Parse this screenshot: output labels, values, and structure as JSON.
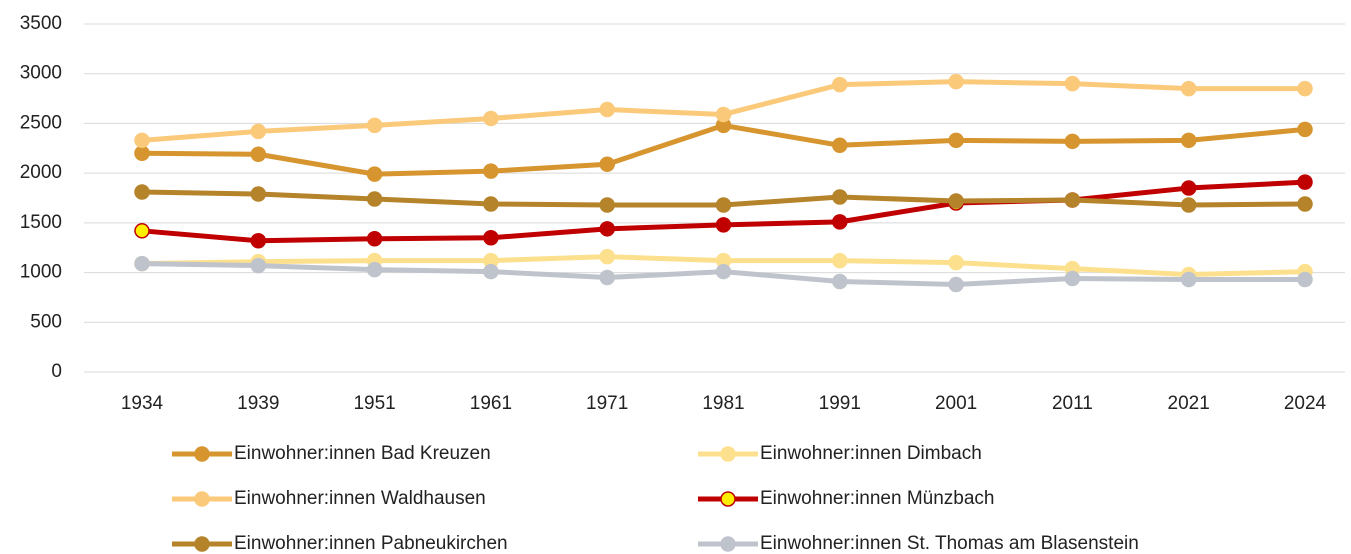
{
  "chart_data": {
    "type": "line",
    "categories": [
      "1934",
      "1939",
      "1951",
      "1961",
      "1971",
      "1981",
      "1991",
      "2001",
      "2011",
      "2021",
      "2024"
    ],
    "ylim": [
      0,
      3500
    ],
    "yticks": [
      0,
      500,
      1000,
      1500,
      2000,
      2500,
      3000,
      3500
    ],
    "grid": true,
    "legend": "bottom",
    "series": [
      {
        "name": "Einwohner:innen Bad Kreuzen",
        "color": "#d6952e",
        "values": [
          2200,
          2190,
          1990,
          2020,
          2090,
          2480,
          2280,
          2330,
          2320,
          2330,
          2440
        ]
      },
      {
        "name": "Einwohner:innen Dimbach",
        "color": "#fde08e",
        "values": [
          1090,
          1110,
          1120,
          1120,
          1160,
          1120,
          1120,
          1100,
          1040,
          980,
          1010
        ]
      },
      {
        "name": "Einwohner:innen Waldhausen",
        "color": "#fbc97a",
        "values": [
          2330,
          2420,
          2480,
          2550,
          2640,
          2590,
          2890,
          2920,
          2900,
          2850,
          2850
        ]
      },
      {
        "name": "Einwohner:innen Münzbach",
        "color": "#c00000",
        "marker_color": "#ffee00",
        "marker_colors": [
          "#ffee00",
          "#c00000",
          "#c00000",
          "#c00000",
          "#c00000",
          "#c00000",
          "#c00000",
          "#ffee00",
          "#c00000",
          "#c00000",
          "#c00000"
        ],
        "values": [
          1420,
          1320,
          1340,
          1350,
          1440,
          1480,
          1510,
          1700,
          1730,
          1850,
          1910
        ]
      },
      {
        "name": "Einwohner:innen Pabneukirchen",
        "color": "#b5832a",
        "values": [
          1810,
          1790,
          1740,
          1690,
          1680,
          1680,
          1760,
          1720,
          1730,
          1680,
          1690
        ]
      },
      {
        "name": "Einwohner:innen St. Thomas am Blasenstein",
        "color": "#bfc4cc",
        "values": [
          1090,
          1070,
          1030,
          1010,
          950,
          1010,
          910,
          880,
          940,
          930,
          930
        ]
      }
    ]
  }
}
